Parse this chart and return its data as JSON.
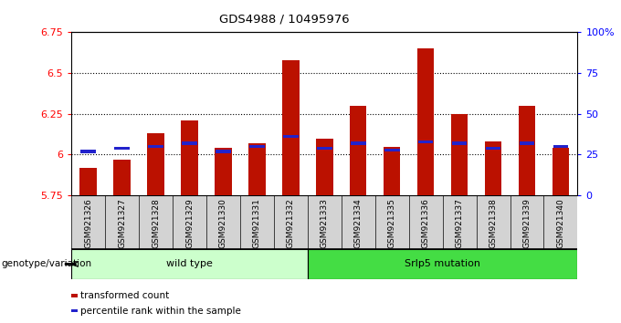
{
  "title": "GDS4988 / 10495976",
  "samples": [
    "GSM921326",
    "GSM921327",
    "GSM921328",
    "GSM921329",
    "GSM921330",
    "GSM921331",
    "GSM921332",
    "GSM921333",
    "GSM921334",
    "GSM921335",
    "GSM921336",
    "GSM921337",
    "GSM921338",
    "GSM921339",
    "GSM921340"
  ],
  "red_values": [
    5.92,
    5.97,
    6.13,
    6.21,
    6.04,
    6.07,
    6.58,
    6.1,
    6.3,
    6.05,
    6.65,
    6.25,
    6.08,
    6.3,
    6.04
  ],
  "blue_pct": [
    27,
    29,
    30,
    32,
    27,
    30,
    36,
    29,
    32,
    28,
    33,
    32,
    29,
    32,
    30
  ],
  "ymin": 5.75,
  "ymax": 6.75,
  "yticks": [
    5.75,
    6.0,
    6.25,
    6.5,
    6.75
  ],
  "ytick_labels": [
    "5.75",
    "6",
    "6.25",
    "6.5",
    "6.75"
  ],
  "right_yticks_pct": [
    0,
    25,
    50,
    75,
    100
  ],
  "right_ylabels": [
    "0",
    "25",
    "50",
    "75",
    "100%"
  ],
  "grid_lines": [
    6.0,
    6.25,
    6.5
  ],
  "bar_color_red": "#bb1100",
  "bar_color_blue": "#2222cc",
  "groups": [
    {
      "label": "wild type",
      "start": 0,
      "end": 7,
      "color": "#ccffcc"
    },
    {
      "label": "Srlp5 mutation",
      "start": 7,
      "end": 15,
      "color": "#44dd44"
    }
  ],
  "group_label_prefix": "genotype/variation",
  "legend_red": "transformed count",
  "legend_blue": "percentile rank within the sample",
  "bar_width": 0.5,
  "bg_color": "#d3d3d3"
}
